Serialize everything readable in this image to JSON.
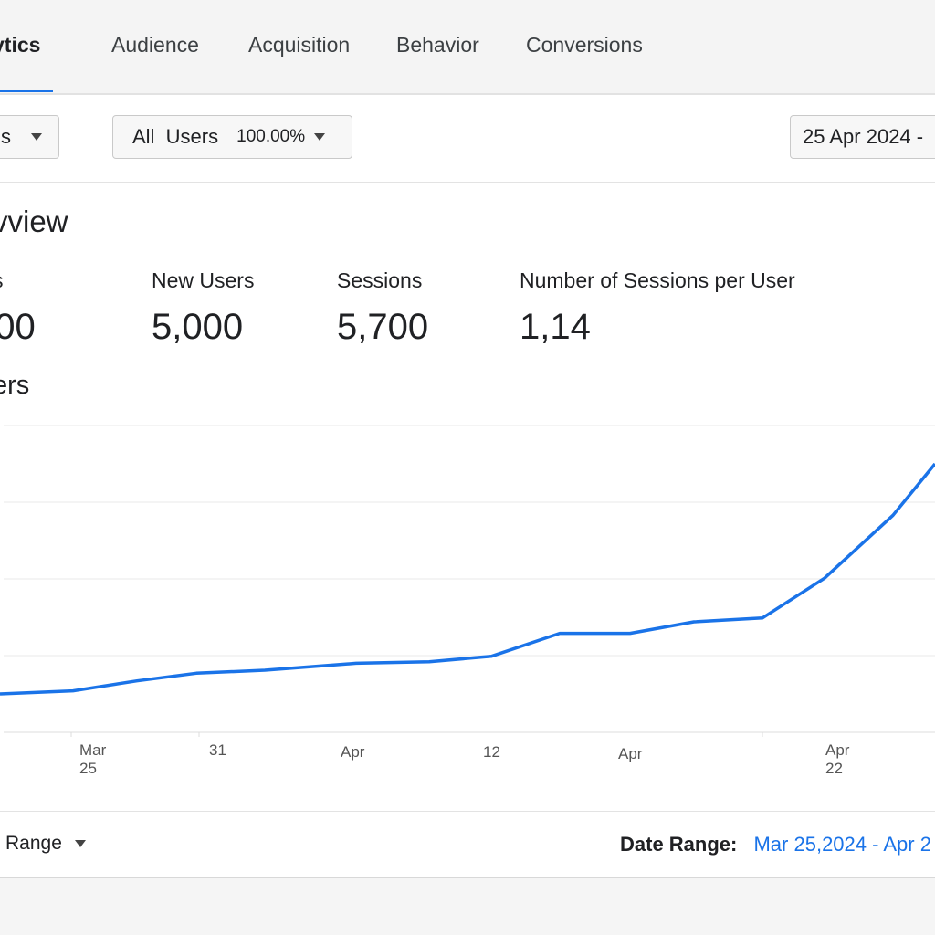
{
  "nav": {
    "brand": "ytics",
    "tabs": [
      "Audience",
      "Acquisition",
      "Behavior",
      "Conversions"
    ],
    "accent": "#1a73e8"
  },
  "filters": {
    "left_dropdown": "s",
    "segment": {
      "label": "All  Users",
      "percent": "100.00%"
    },
    "date_picker": "25 Apr 2024 -"
  },
  "overview": {
    "title": "vview",
    "metrics": [
      {
        "label": "s",
        "value": "000"
      },
      {
        "label": "New Users",
        "value": "5,000"
      },
      {
        "label": "Sessions",
        "value": "5,700"
      },
      {
        "label": "Number of Sessions per User",
        "value": "1,14"
      }
    ]
  },
  "chart_data": {
    "type": "line",
    "title": "ers",
    "x_tick_labels": [
      {
        "line1": "Mar",
        "line2": "25"
      },
      {
        "line1": "31",
        "line2": ""
      },
      {
        "line1": "Apr",
        "line2": ""
      },
      {
        "line1": "12",
        "line2": ""
      },
      {
        "line1": "Apr",
        "line2": ""
      },
      {
        "line1": "Apr",
        "line2": "22"
      }
    ],
    "y_axis_labels": "none shown",
    "grid": true,
    "series": [
      {
        "color": "#1a73e8",
        "values": [
          0.5,
          0.54,
          0.67,
          0.77,
          0.81,
          0.9,
          0.92,
          0.99,
          1.29,
          1.29,
          1.44,
          1.49,
          2.01,
          2.83,
          3.5
        ]
      }
    ],
    "ylim": [
      0,
      4
    ]
  },
  "footer": {
    "range_dropdown": "Range",
    "date_range_label": "Date Range:",
    "date_range_value": "Mar 25,2024 - Apr 2"
  }
}
